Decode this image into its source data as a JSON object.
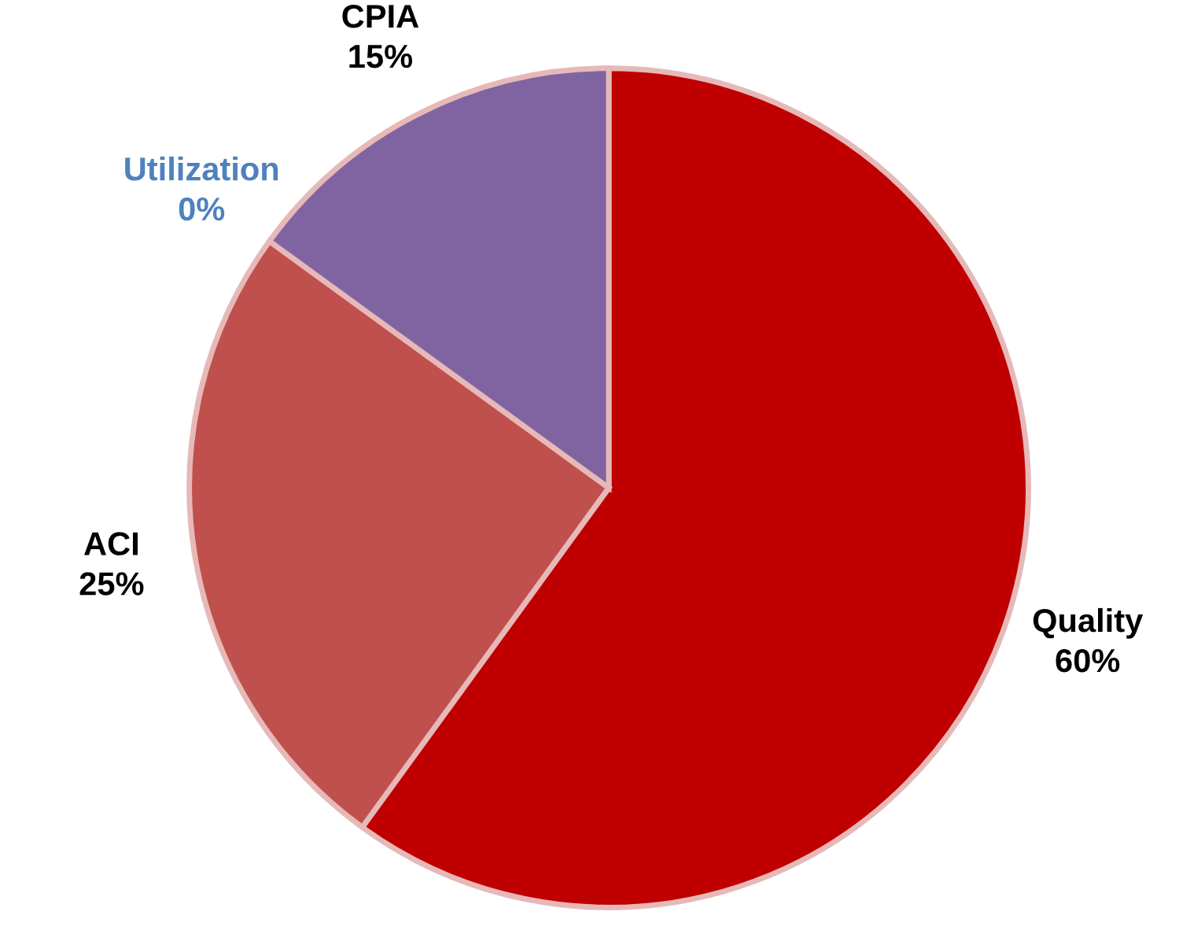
{
  "chart_data": {
    "type": "pie",
    "categories": [
      "Quality",
      "ACI",
      "Utilization",
      "CPIA"
    ],
    "values": [
      60,
      25,
      0,
      15
    ],
    "colors": [
      "#c00000",
      "#c0504d",
      "#4f81bd",
      "#8064a2"
    ],
    "value_labels": [
      "60%",
      "25%",
      "0%",
      "15%"
    ]
  }
}
